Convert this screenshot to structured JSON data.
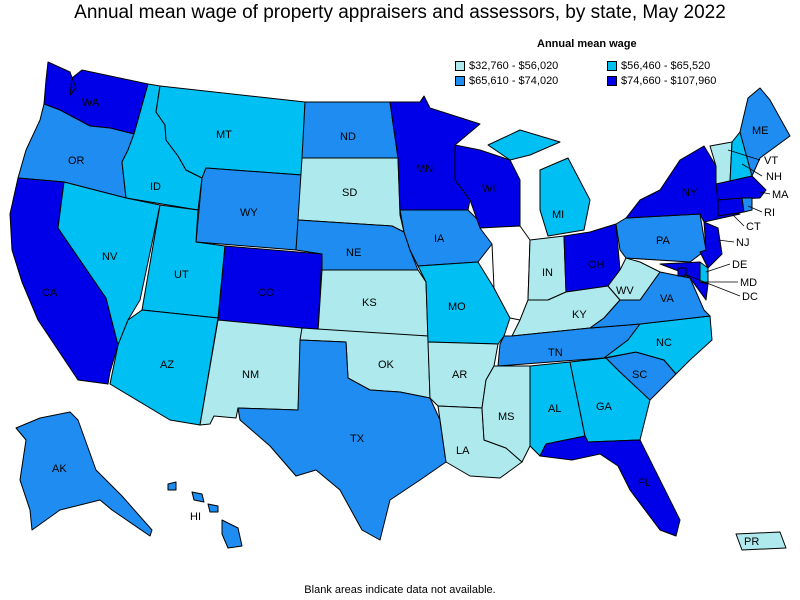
{
  "title": "Annual mean wage of property appraisers and assessors, by state, May 2022",
  "legend": {
    "title": "Annual mean wage",
    "items": [
      {
        "label": "$32,760 - $56,020",
        "color": "#aeeaed"
      },
      {
        "label": "$56,460 - $65,520",
        "color": "#00bff3"
      },
      {
        "label": "$65,610 - $74,020",
        "color": "#1e8cf0"
      },
      {
        "label": "$74,660 - $107,960",
        "color": "#0000e8"
      }
    ]
  },
  "colors": {
    "c1": "#aeeaed",
    "c2": "#00bff3",
    "c3": "#1e8cf0",
    "c4": "#0000e8"
  },
  "states": {
    "WA": {
      "label": "WA",
      "tier": "c4"
    },
    "OR": {
      "label": "OR",
      "tier": "c3"
    },
    "CA": {
      "label": "CA",
      "tier": "c4"
    },
    "ID": {
      "label": "ID",
      "tier": "c2"
    },
    "NV": {
      "label": "NV",
      "tier": "c2"
    },
    "MT": {
      "label": "MT",
      "tier": "c2"
    },
    "WY": {
      "label": "WY",
      "tier": "c3"
    },
    "UT": {
      "label": "UT",
      "tier": "c2"
    },
    "AZ": {
      "label": "AZ",
      "tier": "c2"
    },
    "CO": {
      "label": "CO",
      "tier": "c4"
    },
    "NM": {
      "label": "NM",
      "tier": "c1"
    },
    "ND": {
      "label": "ND",
      "tier": "c3"
    },
    "SD": {
      "label": "SD",
      "tier": "c1"
    },
    "NE": {
      "label": "NE",
      "tier": "c3"
    },
    "KS": {
      "label": "KS",
      "tier": "c1"
    },
    "OK": {
      "label": "OK",
      "tier": "c1"
    },
    "TX": {
      "label": "TX",
      "tier": "c3"
    },
    "MN": {
      "label": "MN",
      "tier": "c4"
    },
    "IA": {
      "label": "IA",
      "tier": "c3"
    },
    "MO": {
      "label": "MO",
      "tier": "c2"
    },
    "AR": {
      "label": "AR",
      "tier": "c1"
    },
    "LA": {
      "label": "LA",
      "tier": "c1"
    },
    "WI": {
      "label": "WI",
      "tier": "c4"
    },
    "MI": {
      "label": "MI",
      "tier": "c2"
    },
    "IN": {
      "label": "IN",
      "tier": "c1"
    },
    "OH": {
      "label": "OH",
      "tier": "c4"
    },
    "KY": {
      "label": "KY",
      "tier": "c1"
    },
    "TN": {
      "label": "TN",
      "tier": "c3"
    },
    "MS": {
      "label": "MS",
      "tier": "c1"
    },
    "AL": {
      "label": "AL",
      "tier": "c2"
    },
    "GA": {
      "label": "GA",
      "tier": "c2"
    },
    "FL": {
      "label": "FL",
      "tier": "c4"
    },
    "SC": {
      "label": "SC",
      "tier": "c3"
    },
    "NC": {
      "label": "NC",
      "tier": "c2"
    },
    "VA": {
      "label": "VA",
      "tier": "c3"
    },
    "WV": {
      "label": "WV",
      "tier": "c1"
    },
    "PA": {
      "label": "PA",
      "tier": "c3"
    },
    "NY": {
      "label": "NY",
      "tier": "c4"
    },
    "VT": {
      "label": "VT",
      "tier": "c1"
    },
    "NH": {
      "label": "NH",
      "tier": "c2"
    },
    "ME": {
      "label": "ME",
      "tier": "c3"
    },
    "MA": {
      "label": "MA",
      "tier": "c4"
    },
    "RI": {
      "label": "RI",
      "tier": "c3"
    },
    "CT": {
      "label": "CT",
      "tier": "c4"
    },
    "NJ": {
      "label": "NJ",
      "tier": "c4"
    },
    "DE": {
      "label": "DE",
      "tier": "c2"
    },
    "MD": {
      "label": "MD",
      "tier": "c4"
    },
    "DC": {
      "label": "DC",
      "tier": "c4"
    },
    "AK": {
      "label": "AK",
      "tier": "c3"
    },
    "HI": {
      "label": "HI",
      "tier": "c3"
    },
    "PR": {
      "label": "PR",
      "tier": "c1"
    }
  },
  "footnote": "Blank areas indicate data not available."
}
